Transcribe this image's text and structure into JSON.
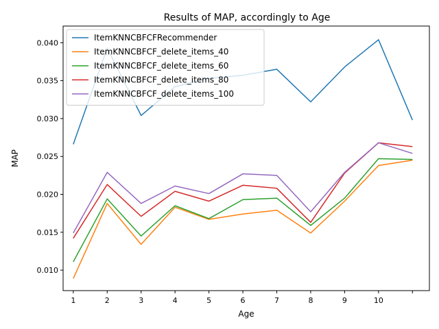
{
  "chart_data": {
    "type": "line",
    "title": "Results of MAP, accordingly to Age",
    "xlabel": "Age",
    "ylabel": "MAP",
    "x": [
      1,
      2,
      3,
      4,
      5,
      6,
      7,
      8,
      9,
      10,
      11
    ],
    "x_tick_labels": [
      "1",
      "2",
      "3",
      "4",
      "5",
      "6",
      "7",
      "8",
      "9",
      "10",
      ""
    ],
    "xlim": [
      0.7,
      11.5
    ],
    "ylim": [
      0.0073,
      0.0422
    ],
    "y_ticks": [
      0.01,
      0.015,
      0.02,
      0.025,
      0.03,
      0.035,
      0.04
    ],
    "y_tick_labels": [
      "0.010",
      "0.015",
      "0.020",
      "0.025",
      "0.030",
      "0.035",
      "0.040"
    ],
    "grid": false,
    "legend_position": "upper-left",
    "series": [
      {
        "name": "ItemKNNCBFCFRecommender",
        "color": "#1f77b4",
        "values": [
          0.0266,
          0.0393,
          0.0304,
          0.0342,
          0.0353,
          0.0357,
          0.0365,
          0.0322,
          0.0368,
          0.0404,
          0.0298
        ]
      },
      {
        "name": "ItemKNNCBFCF_delete_items_40",
        "color": "#ff7f0e",
        "values": [
          0.0089,
          0.0188,
          0.0134,
          0.0183,
          0.0167,
          0.0174,
          0.0179,
          0.0149,
          0.0191,
          0.0238,
          0.0245
        ]
      },
      {
        "name": "ItemKNNCBFCF_delete_items_60",
        "color": "#2ca02c",
        "values": [
          0.0111,
          0.0194,
          0.0145,
          0.0185,
          0.0168,
          0.0193,
          0.0195,
          0.0159,
          0.0195,
          0.0247,
          0.0246
        ]
      },
      {
        "name": "ItemKNNCBFCF_delete_items_80",
        "color": "#d62728",
        "values": [
          0.0142,
          0.0213,
          0.0171,
          0.0204,
          0.0191,
          0.0212,
          0.0208,
          0.0163,
          0.0228,
          0.0268,
          0.0263
        ]
      },
      {
        "name": "ItemKNNCBFCF_delete_items_100",
        "color": "#9467bd",
        "values": [
          0.0149,
          0.0229,
          0.0188,
          0.0211,
          0.0201,
          0.0227,
          0.0225,
          0.0177,
          0.0229,
          0.0268,
          0.0254
        ]
      }
    ]
  }
}
